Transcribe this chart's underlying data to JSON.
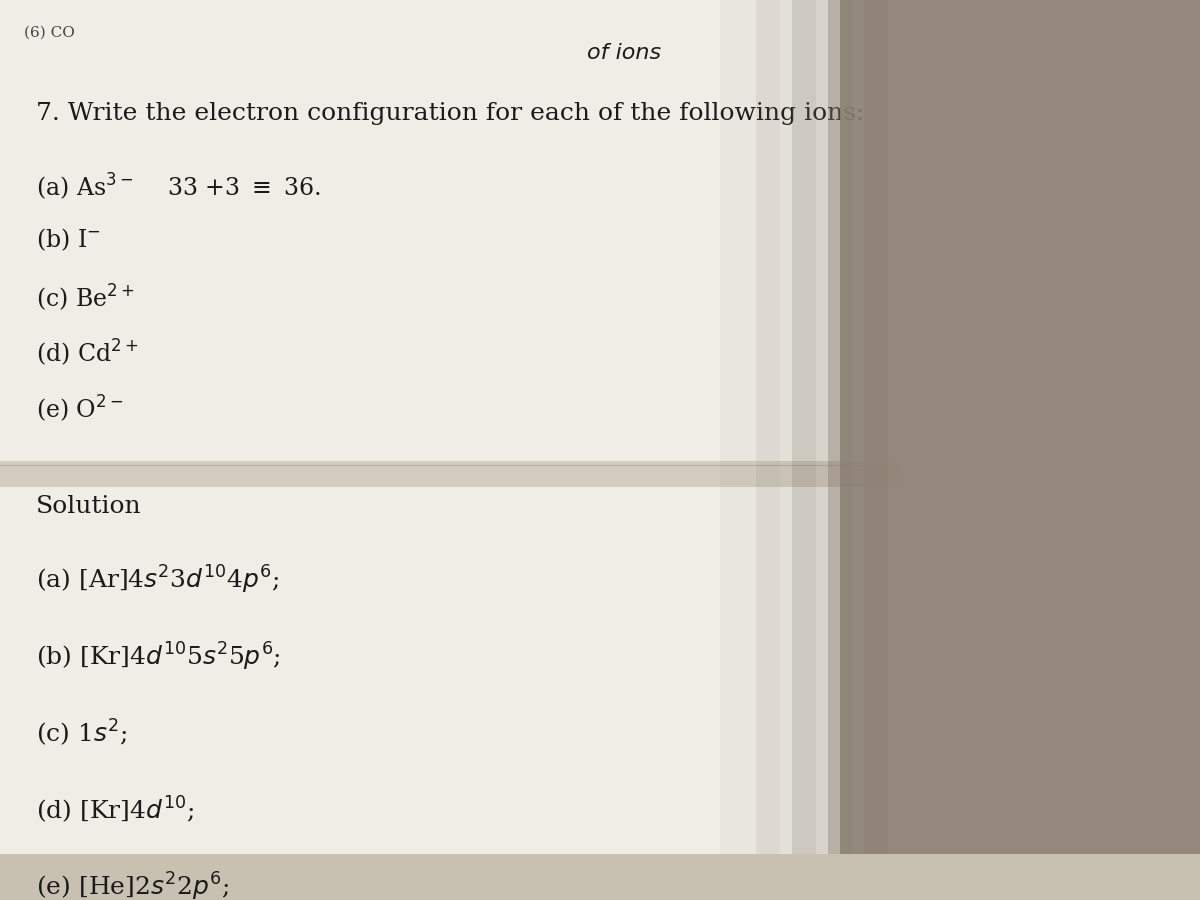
{
  "bg_color": "#c8c0b0",
  "paper_color": "#f0ede6",
  "top_label": "(6) CO",
  "handwritten_top": "of ions",
  "question": "7. Write the electron configuration for each of the following ions:",
  "ions": [
    "(a) As³⁻  33 +3 ≡ 36.",
    "(b) I⁻",
    "(c) Be²⁺",
    "(d) Cd²⁺",
    "(e) O²⁻"
  ],
  "solution_header": "Solution",
  "solutions": [
    "(a) [Ar]4s²3d¹⁰ 4p⁶;",
    "(b) [Kr]4d¹⁰ 5s²5p⁶;",
    "(c) 1s²;",
    "(d) [Kr]4d¹⁰;",
    "(e) [He]2s²2p⁶;"
  ],
  "font_size_question": 18,
  "font_size_ions": 17,
  "font_size_solution": 18,
  "text_color": "#1a1a1a"
}
